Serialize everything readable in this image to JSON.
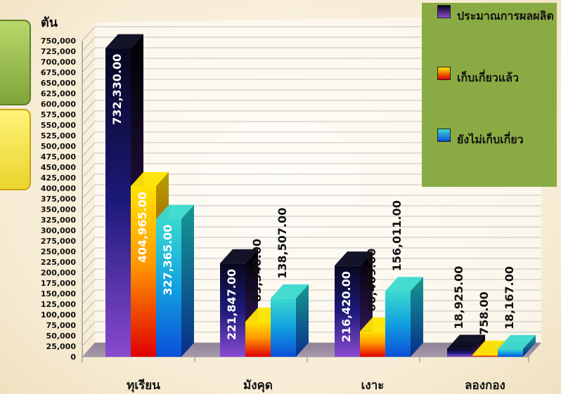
{
  "chart_data": {
    "type": "bar",
    "title": "",
    "ylabel": "ตัน",
    "xlabel": "",
    "ylim": [
      0,
      750000
    ],
    "y_ticks": [
      "0",
      "25,000",
      "50,000",
      "75,000",
      "100,000",
      "125,000",
      "150,000",
      "175,000",
      "200,000",
      "225,000",
      "250,000",
      "275,000",
      "300,000",
      "325,000",
      "350,000",
      "375,000",
      "400,000",
      "425,000",
      "450,000",
      "475,000",
      "500,000",
      "525,000",
      "550,000",
      "575,000",
      "600,000",
      "625,000",
      "650,000",
      "675,000",
      "700,000",
      "725,000",
      "750,000"
    ],
    "categories": [
      "ทุเรียน",
      "มังคุด",
      "เงาะ",
      "ลองกอง"
    ],
    "series": [
      {
        "name": "ประมาณการผลผลิต",
        "values": [
          732330,
          221847,
          216420,
          18925
        ],
        "labels": [
          "732,330.00",
          "221,847.00",
          "216,420.00",
          "18,925.00"
        ],
        "color_top": "#07071e",
        "color_bottom": "#8a4ad0"
      },
      {
        "name": "เก็บเกี่ยวแล้ว",
        "values": [
          404965,
          83340,
          60409,
          758
        ],
        "labels": [
          "404,965.00",
          "83,340.00",
          "60,409.00",
          "758.00"
        ],
        "color_top": "#ffe400",
        "color_bottom": "#e00000"
      },
      {
        "name": "ยังไม่เก็บเกี่ยว",
        "values": [
          327365,
          138507,
          156011,
          18167
        ],
        "labels": [
          "327,365.00",
          "138,507.00",
          "156,011.00",
          "18,167.00"
        ],
        "color_top": "#3ad9cf",
        "color_bottom": "#0a4fd8"
      }
    ],
    "grid": true,
    "legend_position": "top-right",
    "style": "3d-clustered-column"
  },
  "legend": {
    "items": [
      {
        "label": "ประมาณการผลผลิต",
        "icon": "navy-purple-swatch"
      },
      {
        "label": "เก็บเกี่ยวแล้ว",
        "icon": "yellow-red-swatch"
      },
      {
        "label": "ยังไม่เก็บเกี่ยว",
        "icon": "cyan-blue-swatch"
      }
    ]
  },
  "decorations": {
    "left_tabs": [
      "green-tab",
      "yellow-tab"
    ]
  }
}
